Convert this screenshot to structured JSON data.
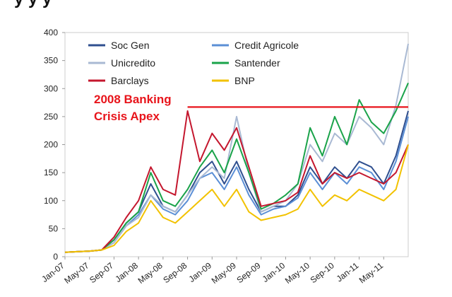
{
  "header": {
    "partial_title_text": "y y y"
  },
  "chart_data": {
    "type": "line",
    "title": "",
    "xlabel": "",
    "ylabel": "",
    "ylim": [
      0,
      400
    ],
    "yticks": [
      0,
      50,
      100,
      150,
      200,
      250,
      300,
      350,
      400
    ],
    "xtick_labels": [
      "Jan-07",
      "May-07",
      "Sep-07",
      "Jan-08",
      "May-08",
      "Sep-08",
      "Jan-09",
      "May-09",
      "Sep-09",
      "Jan-10",
      "May-10",
      "Sep-10",
      "Jan-11",
      "May-11"
    ],
    "x": [
      "Jan-07",
      "Mar-07",
      "May-07",
      "Jul-07",
      "Sep-07",
      "Nov-07",
      "Jan-08",
      "Mar-08",
      "May-08",
      "Jul-08",
      "Sep-08",
      "Nov-08",
      "Jan-09",
      "Mar-09",
      "May-09",
      "Jul-09",
      "Sep-09",
      "Nov-09",
      "Jan-10",
      "Mar-10",
      "May-10",
      "Jul-10",
      "Sep-10",
      "Nov-10",
      "Jan-11",
      "Mar-11",
      "May-11",
      "Jul-11",
      "Sep-11"
    ],
    "legend_position": "top-left",
    "series": [
      {
        "name": "Soc Gen",
        "color": "#2f4f8f",
        "values": [
          8,
          9,
          10,
          12,
          30,
          60,
          80,
          130,
          90,
          80,
          110,
          150,
          170,
          130,
          170,
          120,
          80,
          90,
          90,
          110,
          160,
          130,
          160,
          140,
          170,
          160,
          130,
          180,
          260
        ]
      },
      {
        "name": "Credit Agricole",
        "color": "#5b8fd6",
        "values": [
          8,
          9,
          10,
          12,
          25,
          55,
          75,
          110,
          85,
          75,
          100,
          140,
          150,
          120,
          160,
          110,
          75,
          85,
          90,
          105,
          150,
          120,
          150,
          130,
          160,
          150,
          120,
          170,
          250
        ]
      },
      {
        "name": "Unicredito",
        "color": "#a9b9d3",
        "values": [
          8,
          9,
          10,
          12,
          25,
          55,
          70,
          110,
          90,
          80,
          110,
          140,
          160,
          140,
          250,
          150,
          80,
          90,
          100,
          130,
          200,
          170,
          220,
          200,
          250,
          230,
          200,
          270,
          380
        ]
      },
      {
        "name": "Santender",
        "color": "#1aa34a",
        "values": [
          8,
          9,
          10,
          12,
          30,
          60,
          80,
          150,
          100,
          90,
          120,
          160,
          190,
          150,
          210,
          150,
          85,
          95,
          110,
          130,
          230,
          180,
          250,
          200,
          280,
          240,
          220,
          260,
          310
        ]
      },
      {
        "name": "Barclays",
        "color": "#c4172e",
        "values": [
          8,
          9,
          10,
          12,
          35,
          70,
          100,
          160,
          120,
          110,
          260,
          170,
          220,
          190,
          230,
          160,
          90,
          95,
          100,
          115,
          180,
          130,
          150,
          140,
          150,
          140,
          130,
          150,
          200
        ]
      },
      {
        "name": "BNP",
        "color": "#f2c200",
        "values": [
          8,
          9,
          10,
          12,
          20,
          45,
          60,
          100,
          70,
          60,
          80,
          100,
          120,
          90,
          120,
          80,
          65,
          70,
          75,
          85,
          120,
          90,
          110,
          100,
          120,
          110,
          100,
          120,
          200
        ]
      }
    ],
    "reference_line": {
      "value": 267,
      "from": "Sep-08",
      "to": "Sep-11",
      "color": "#e8141b"
    },
    "annotations": [
      {
        "text": "2008 Banking",
        "color": "#e8141b"
      },
      {
        "text": "Crisis Apex",
        "color": "#e8141b"
      }
    ]
  }
}
